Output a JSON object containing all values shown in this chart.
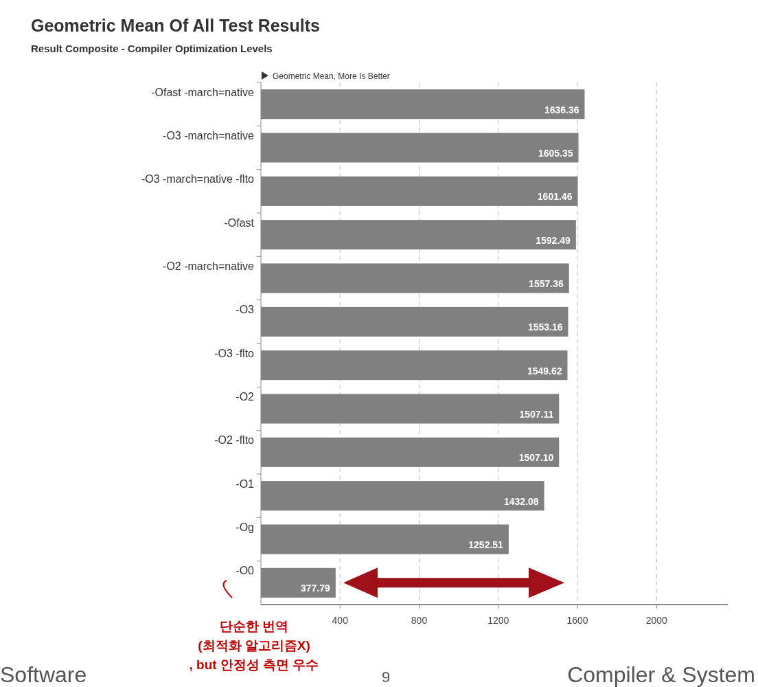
{
  "chart_data": {
    "type": "bar",
    "orientation": "horizontal",
    "title": "Geometric Mean Of All Test Results",
    "subtitle": "Result Composite - Compiler Optimization Levels",
    "categories": [
      "-Ofast -march=native",
      "-O3 -march=native",
      "-O3 -march=native -flto",
      "-Ofast",
      "-O2 -march=native",
      "-O3",
      "-O3 -flto",
      "-O2",
      "-O2 -flto",
      "-O1",
      "-Og",
      "-O0"
    ],
    "values": [
      1636.36,
      1605.35,
      1601.46,
      1592.49,
      1557.36,
      1553.16,
      1549.62,
      1507.11,
      1507.1,
      1432.08,
      1252.51,
      377.79
    ],
    "value_labels": [
      "1636.36",
      "1605.35",
      "1601.46",
      "1592.49",
      "1557.36",
      "1553.16",
      "1549.62",
      "1507.11",
      "1507.10",
      "1432.08",
      "1252.51",
      "377.79"
    ],
    "color": "#808080",
    "xlim": [
      0,
      2360
    ],
    "xticks": [
      400,
      800,
      1200,
      1600,
      2000
    ],
    "grid": "x",
    "annotations": [
      "Geometric Mean, More Is Better",
      "단순한 번역\n(최적화 알고리즘X)\n, but 안정성 측면 우수",
      "Software",
      "9",
      "Compiler & System"
    ]
  }
}
